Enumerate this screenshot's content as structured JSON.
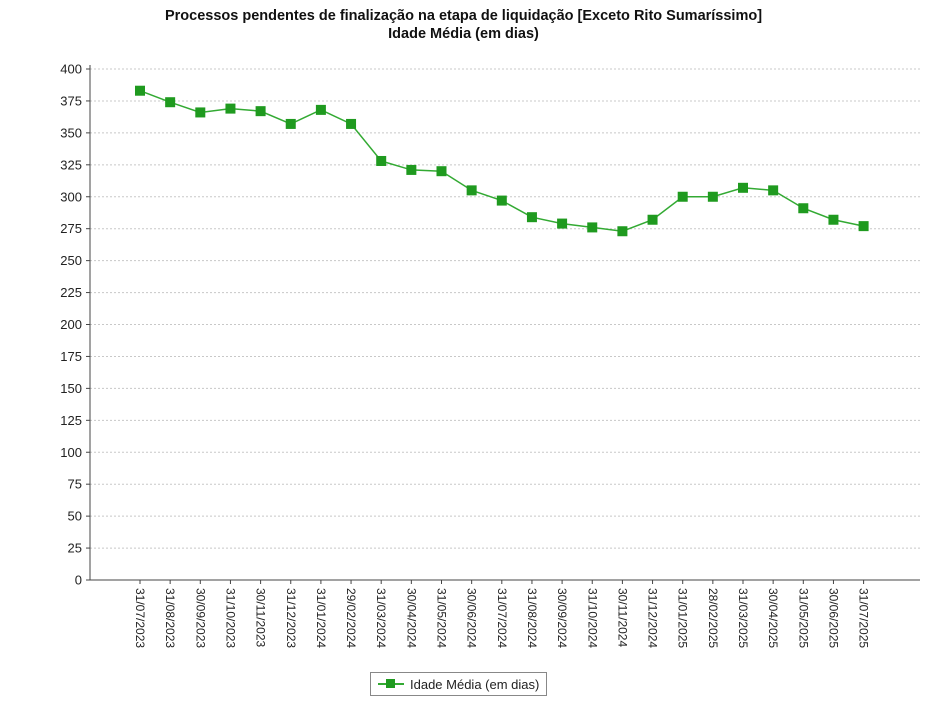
{
  "chart_data": {
    "type": "line",
    "title": "Processos pendentes de finalização na etapa de liquidação [Exceto Rito Sumaríssimo]",
    "subtitle": "Idade Média (em dias)",
    "xlabel": "",
    "ylabel": "",
    "ylim": [
      0,
      400
    ],
    "yticks": [
      0,
      25,
      50,
      75,
      100,
      125,
      150,
      175,
      200,
      225,
      250,
      275,
      300,
      325,
      350,
      375,
      400
    ],
    "grid": true,
    "legend_position": "bottom",
    "categories": [
      "31/07/2023",
      "31/08/2023",
      "30/09/2023",
      "31/10/2023",
      "30/11/2023",
      "31/12/2023",
      "31/01/2024",
      "29/02/2024",
      "31/03/2024",
      "30/04/2024",
      "31/05/2024",
      "30/06/2024",
      "31/07/2024",
      "31/08/2024",
      "30/09/2024",
      "31/10/2024",
      "30/11/2024",
      "31/12/2024",
      "31/01/2025",
      "28/02/2025",
      "31/03/2025",
      "30/04/2025",
      "31/05/2025",
      "30/06/2025",
      "31/07/2025"
    ],
    "series": [
      {
        "name": "Idade Média (em dias)",
        "color": "#1f9a1f",
        "values": [
          383,
          374,
          366,
          369,
          367,
          357,
          368,
          357,
          328,
          321,
          320,
          305,
          297,
          284,
          279,
          276,
          273,
          282,
          300,
          300,
          307,
          305,
          291,
          282,
          277
        ]
      }
    ]
  }
}
